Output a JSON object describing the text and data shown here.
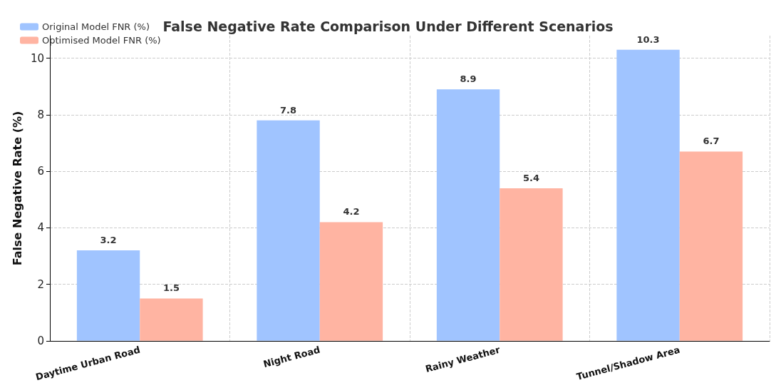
{
  "chart_data": {
    "type": "bar",
    "title": "False Negative Rate Comparison Under Different Scenarios",
    "ylabel": "False Negative Rate (%)",
    "categories": [
      "Daytime Urban Road",
      "Night Road",
      "Rainy Weather",
      "Tunnel/Shadow Area"
    ],
    "series": [
      {
        "name": "Original Model FNR (%)",
        "color": "#a0c4ff",
        "values": [
          3.2,
          7.8,
          8.9,
          10.3
        ]
      },
      {
        "name": "Optimised Model FNR (%)",
        "color": "#ffb4a2",
        "values": [
          1.5,
          4.2,
          5.4,
          6.7
        ]
      }
    ],
    "ylim": [
      0,
      10.8
    ],
    "yticks": [
      0,
      2,
      4,
      6,
      8,
      10
    ],
    "grid": true,
    "legend": "top left",
    "data_labels": true
  }
}
